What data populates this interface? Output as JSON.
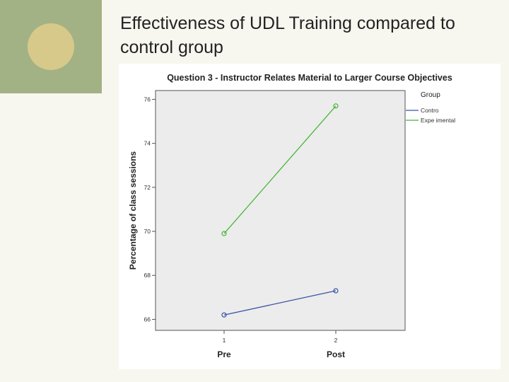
{
  "slide": {
    "title": "Effectiveness of UDL Training compared to control group"
  },
  "colors": {
    "deco_block": "#a3b284",
    "deco_circle": "#d7c98a",
    "plot_bg": "#ececec",
    "control": "#3a53a4",
    "experimental": "#48b53a"
  },
  "chart_data": {
    "type": "line",
    "title": "Question 3 - Instructor Relates Material to Larger Course Objectives",
    "xlabel": "",
    "ylabel": "Percentage of class sessions",
    "x": [
      1,
      2
    ],
    "x_tick_labels": [
      "1",
      "2"
    ],
    "x_group_labels": [
      "Pre",
      "Post"
    ],
    "yticks": [
      66,
      68,
      70,
      72,
      74,
      76
    ],
    "ylim": [
      65.5,
      76.4
    ],
    "grid": false,
    "legend": {
      "title": "Group",
      "placement": "right"
    },
    "series": [
      {
        "name": "Contro",
        "values": [
          66.2,
          67.3
        ],
        "color": "#3a53a4"
      },
      {
        "name": "Expe imental",
        "values": [
          69.9,
          75.7
        ],
        "color": "#48b53a"
      }
    ]
  }
}
